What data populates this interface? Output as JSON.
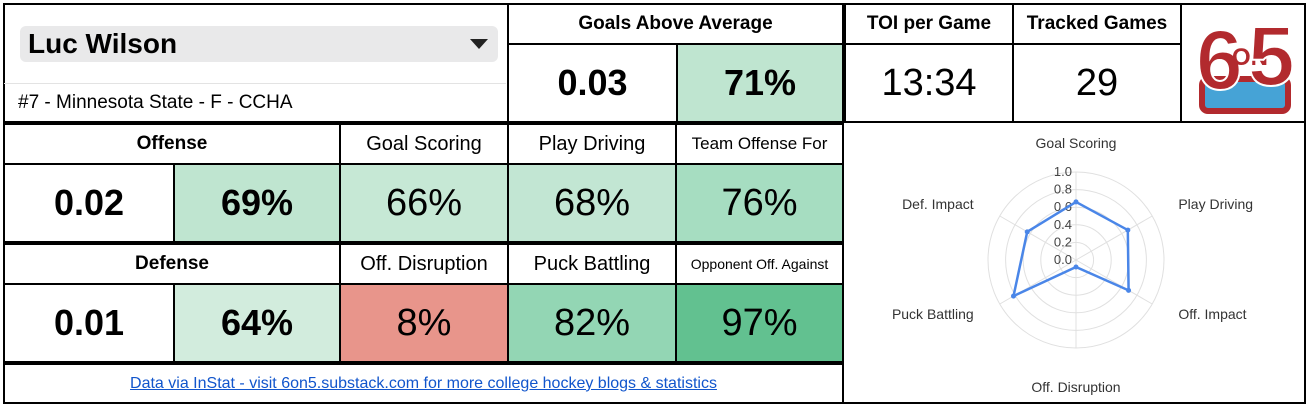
{
  "player": {
    "name": "Luc Wilson",
    "info": "#7 - Minnesota State - F - CCHA"
  },
  "goals_above_average": {
    "label": "Goals Above Average",
    "value": "0.03",
    "percentile": "71%"
  },
  "toi": {
    "label": "TOI per Game",
    "value": "13:34"
  },
  "tracked": {
    "label": "Tracked Games",
    "value": "29"
  },
  "logo": {
    "text_top": "6",
    "text_mid": "ON",
    "text_end": "5"
  },
  "offense": {
    "label": "Offense",
    "value": "0.02",
    "percentile": "69%",
    "metrics": [
      {
        "label": "Goal Scoring",
        "value": "66%"
      },
      {
        "label": "Play Driving",
        "value": "68%"
      },
      {
        "label": "Team Offense For",
        "value": "76%"
      }
    ]
  },
  "defense": {
    "label": "Defense",
    "value": "0.01",
    "percentile": "64%",
    "metrics": [
      {
        "label": "Off. Disruption",
        "value": "8%"
      },
      {
        "label": "Puck Battling",
        "value": "82%"
      },
      {
        "label": "Opponent Off. Against",
        "value": "97%"
      }
    ]
  },
  "footer": {
    "text": "Data via InStat - visit 6on5.substack.com for more college hockey blogs & statistics"
  },
  "colors": {
    "p_low": "#e8958b",
    "p_mid_light": "#d2ecdd",
    "p_mid": "#c1e6d2",
    "p_mid2": "#bfe5d0",
    "p_high1": "#a2dcc0",
    "p_high2": "#90d5b2",
    "p_high3": "#66c293",
    "radar_line": "#4a86e8",
    "logo_red": "#b22a2e",
    "logo_blue": "#46a3d6"
  },
  "chart_data": {
    "type": "radar",
    "axes": [
      "Goal Scoring",
      "Play Driving",
      "Off. Impact",
      "Off. Disruption",
      "Puck Battling",
      "Def. Impact"
    ],
    "values": [
      0.66,
      0.68,
      0.69,
      0.08,
      0.82,
      0.64
    ],
    "tick_labels": [
      "0.0",
      "0.2",
      "0.4",
      "0.6",
      "0.8",
      "1.0"
    ],
    "rlim": [
      0,
      1
    ]
  }
}
